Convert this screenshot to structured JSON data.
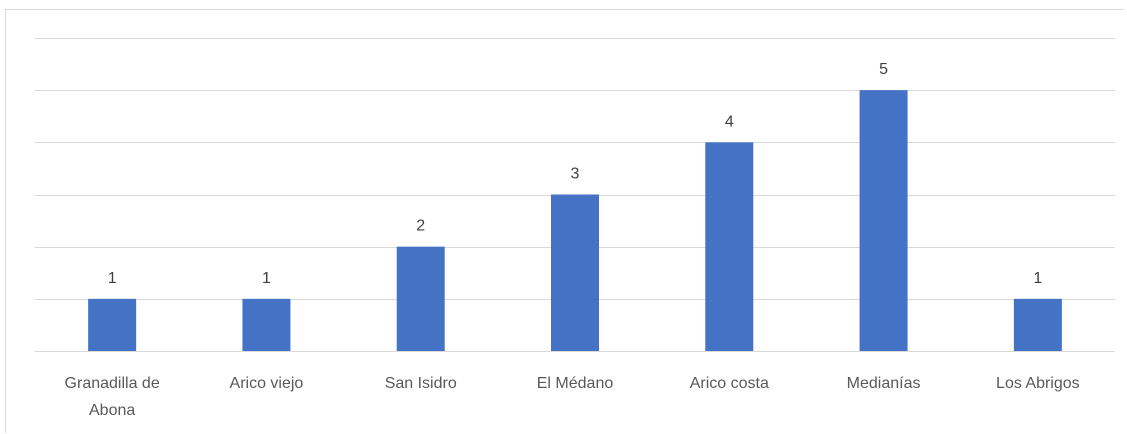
{
  "chart_data": {
    "type": "bar",
    "categories": [
      [
        "Granadilla de",
        "Abona"
      ],
      [
        "Arico viejo"
      ],
      [
        "San Isidro"
      ],
      [
        "El Médano"
      ],
      [
        "Arico costa"
      ],
      [
        "Medianías"
      ],
      [
        "Los Abrigos"
      ]
    ],
    "values": [
      1,
      1,
      2,
      3,
      4,
      5,
      1
    ],
    "data_labels": [
      "1",
      "1",
      "2",
      "3",
      "4",
      "5",
      "1"
    ],
    "ylim": [
      0,
      6
    ],
    "gridlines": true,
    "axis_labels_visible": false,
    "bar_color": "#4472C4",
    "grid_color": "#d9d9d9"
  }
}
